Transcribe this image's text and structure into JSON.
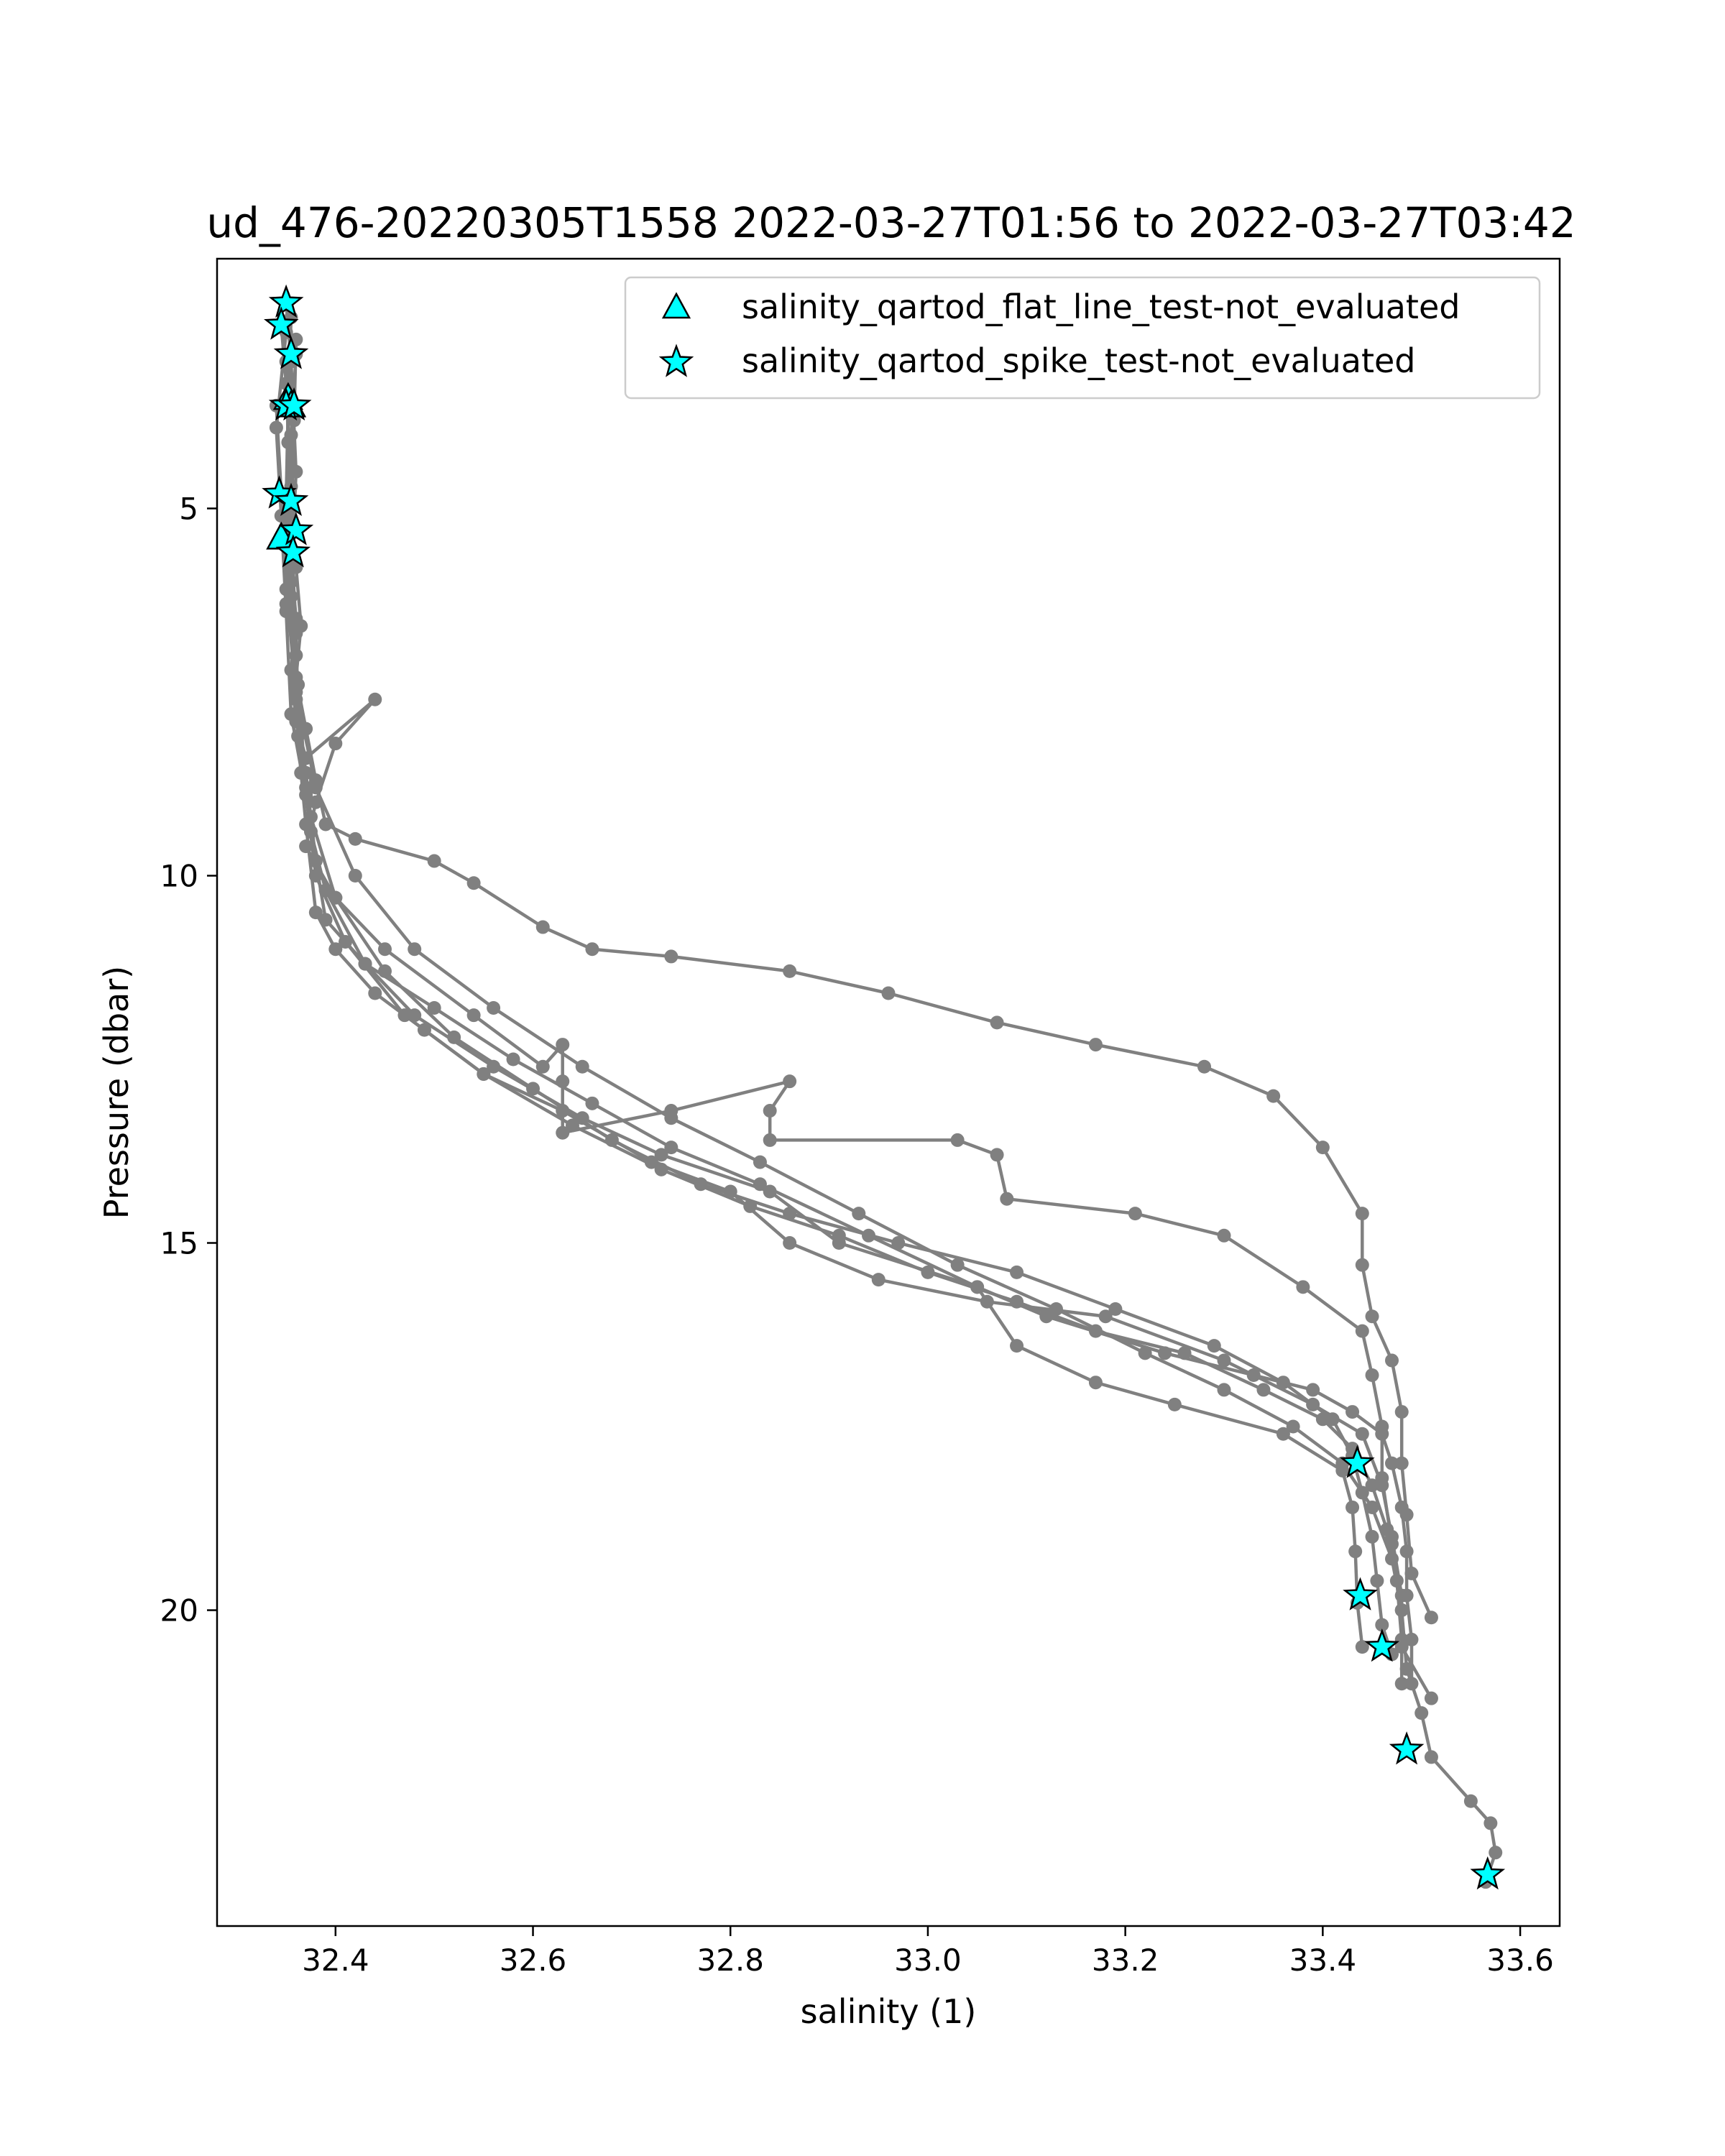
{
  "chart_data": {
    "type": "line",
    "title": "ud_476-20220305T1558 2022-03-27T01:56 to 2022-03-27T03:42",
    "xlabel": "salinity (1)",
    "ylabel": "Pressure (dbar)",
    "xlim": [
      32.28,
      33.64
    ],
    "ylim": [
      24.3,
      1.6
    ],
    "y_inverted": true,
    "grid": false,
    "legend_position": "top-right",
    "x_ticks": [
      32.4,
      32.6,
      32.8,
      33.0,
      33.2,
      33.4,
      33.6
    ],
    "x_tick_labels": [
      "32.4",
      "32.6",
      "32.8",
      "33.0",
      "33.2",
      "33.4",
      "33.6"
    ],
    "y_ticks": [
      5,
      10,
      15,
      20
    ],
    "y_tick_labels": [
      "5",
      "10",
      "15",
      "20"
    ],
    "line_color": "#808080",
    "marker_fill": "#00ffff",
    "marker_edge": "#000000",
    "profiles": [
      {
        "x": [
          32.35,
          32.355,
          32.36,
          32.355,
          32.362,
          32.37,
          32.375,
          32.39,
          32.43,
          32.48,
          32.56,
          32.65,
          32.73,
          32.84,
          32.91,
          33.05,
          33.09,
          33.17,
          33.25,
          33.36,
          33.42,
          33.43,
          33.433,
          33.435,
          33.44
        ],
        "y": [
          2.2,
          3.0,
          4.5,
          6.0,
          7.4,
          8.8,
          9.4,
          10.2,
          11.2,
          11.9,
          12.6,
          13.3,
          13.8,
          14.3,
          15.0,
          15.6,
          16.4,
          16.9,
          17.2,
          17.6,
          18.1,
          18.6,
          19.2,
          19.9,
          20.5
        ]
      },
      {
        "x": [
          32.345,
          32.35,
          32.355,
          32.35,
          32.36,
          32.36,
          32.365,
          32.37,
          32.38,
          32.4,
          32.44,
          32.49,
          32.55,
          32.63,
          32.72,
          32.8,
          32.86,
          32.95,
          33.06,
          33.18,
          33.3,
          33.39,
          33.44,
          33.46,
          33.47,
          33.48,
          33.48,
          33.51
        ],
        "y": [
          2.5,
          3.3,
          4.7,
          6.3,
          7.0,
          7.8,
          8.6,
          9.3,
          10.5,
          11.0,
          11.6,
          12.1,
          12.7,
          13.2,
          13.9,
          14.3,
          15.0,
          15.5,
          15.8,
          16.0,
          16.6,
          17.2,
          17.6,
          18.3,
          19.0,
          19.8,
          20.5,
          21.2
        ]
      },
      {
        "x": [
          32.36,
          32.355,
          32.352,
          32.36,
          32.355,
          32.36,
          32.37,
          32.44,
          32.4,
          32.38,
          32.37,
          32.4,
          32.45,
          32.54,
          32.61,
          32.63,
          32.63,
          32.63,
          32.74,
          32.86,
          32.84,
          32.84,
          33.03,
          33.07,
          33.08,
          33.21,
          33.3,
          33.38,
          33.44,
          33.45,
          33.46,
          33.46,
          33.47,
          33.48
        ],
        "y": [
          2.9,
          4.0,
          5.2,
          6.5,
          7.2,
          7.9,
          8.4,
          7.6,
          8.2,
          9.0,
          9.6,
          10.3,
          11.0,
          11.9,
          12.6,
          12.3,
          12.8,
          13.5,
          13.2,
          12.8,
          13.2,
          13.6,
          13.6,
          13.8,
          14.4,
          14.6,
          14.9,
          15.6,
          16.2,
          16.8,
          17.5,
          18.2,
          19.1,
          20.0
        ]
      },
      {
        "x": [
          32.35,
          32.352,
          32.355,
          32.36,
          32.365,
          32.36,
          32.37,
          32.38,
          32.39,
          32.42,
          32.5,
          32.54,
          32.61,
          32.66,
          32.74,
          32.86,
          32.96,
          33.07,
          33.17,
          33.28,
          33.35,
          33.4,
          33.44,
          33.44,
          33.45,
          33.47,
          33.48,
          33.48,
          33.485,
          33.49,
          33.51
        ],
        "y": [
          3.0,
          4.1,
          5.0,
          5.8,
          6.6,
          7.3,
          8.0,
          8.7,
          9.3,
          9.5,
          9.8,
          10.1,
          10.7,
          11.0,
          11.1,
          11.3,
          11.6,
          12.0,
          12.3,
          12.6,
          13.0,
          13.7,
          14.6,
          15.3,
          16.0,
          16.6,
          17.3,
          18.0,
          18.7,
          19.5,
          20.1
        ]
      },
      {
        "x": [
          32.355,
          32.352,
          32.35,
          32.355,
          32.36,
          32.37,
          32.38,
          32.39,
          32.43,
          32.5,
          32.58,
          32.66,
          32.74,
          32.83,
          32.94,
          33.05,
          33.12,
          33.24,
          33.33,
          33.39,
          33.43,
          33.46,
          33.47,
          33.48,
          33.485,
          33.485,
          33.49,
          33.49
        ],
        "y": [
          2.4,
          3.6,
          4.9,
          6.2,
          7.6,
          8.6,
          9.8,
          10.6,
          11.2,
          11.8,
          12.5,
          13.1,
          13.7,
          14.2,
          14.9,
          15.6,
          16.0,
          16.5,
          16.8,
          17.0,
          17.3,
          17.6,
          18.0,
          18.6,
          19.2,
          19.8,
          20.4,
          21.0
        ]
      },
      {
        "x": [
          32.35,
          32.34,
          32.345,
          32.35,
          32.355,
          32.37,
          32.38,
          32.41,
          32.47,
          32.55,
          32.64,
          32.73,
          32.82,
          32.91,
          33.0,
          33.09,
          33.17,
          33.26,
          33.34,
          33.4,
          33.43,
          33.45,
          33.465,
          33.475,
          33.48,
          33.48
        ],
        "y": [
          2.6,
          3.9,
          5.1,
          6.4,
          7.8,
          8.9,
          10.0,
          10.9,
          11.9,
          12.7,
          13.4,
          14.0,
          14.5,
          14.9,
          15.4,
          15.8,
          16.2,
          16.5,
          17.0,
          17.4,
          17.8,
          18.3,
          18.9,
          19.6,
          20.4,
          21.0
        ]
      },
      {
        "x": [
          32.36,
          32.358,
          32.355,
          32.36,
          32.362,
          32.375,
          32.4,
          32.45,
          32.52,
          32.6,
          32.68,
          32.77,
          32.86,
          32.97,
          33.09,
          33.19,
          33.29,
          33.36,
          33.41,
          33.43,
          33.44,
          33.45,
          33.455,
          33.46,
          33.47
        ],
        "y": [
          2.7,
          3.8,
          5.3,
          6.7,
          8.1,
          9.2,
          10.3,
          11.3,
          12.2,
          12.9,
          13.6,
          14.2,
          14.6,
          15.0,
          15.4,
          15.9,
          16.4,
          16.9,
          17.4,
          17.9,
          18.4,
          19.0,
          19.6,
          20.2,
          20.6
        ]
      },
      {
        "x": [
          32.34,
          32.345,
          32.35,
          32.36,
          32.38,
          32.42,
          32.48,
          32.56,
          32.65,
          32.74,
          32.83,
          32.93,
          33.03,
          33.13,
          33.22,
          33.3,
          33.37,
          33.42,
          33.45,
          33.47,
          33.48,
          33.485,
          33.5,
          33.51,
          33.55,
          33.57,
          33.575,
          33.565
        ],
        "y": [
          3.6,
          4.8,
          6.1,
          7.5,
          8.8,
          10.0,
          11.0,
          11.8,
          12.6,
          13.3,
          13.9,
          14.6,
          15.3,
          15.9,
          16.5,
          17.0,
          17.5,
          18.0,
          18.6,
          19.3,
          20.0,
          20.8,
          21.4,
          22.0,
          22.6,
          22.9,
          23.3,
          23.7
        ]
      }
    ],
    "flagged_series": [
      {
        "name": "salinity_qartod_flat_line_test-not_evaluated",
        "marker": "triangle",
        "x": [
          32.345,
          32.352,
          32.355
        ],
        "y": [
          5.4,
          3.5,
          3.6
        ]
      },
      {
        "name": "salinity_qartod_spike_test-not_evaluated",
        "marker": "star",
        "x": [
          32.35,
          32.345,
          32.355,
          32.35,
          32.358,
          32.343,
          32.355,
          32.36,
          32.357,
          33.435,
          33.438,
          33.46,
          33.485,
          33.567
        ],
        "y": [
          2.2,
          2.5,
          2.9,
          3.6,
          3.6,
          4.8,
          4.9,
          5.3,
          5.6,
          18.0,
          19.8,
          20.5,
          21.9,
          23.6
        ]
      }
    ]
  }
}
